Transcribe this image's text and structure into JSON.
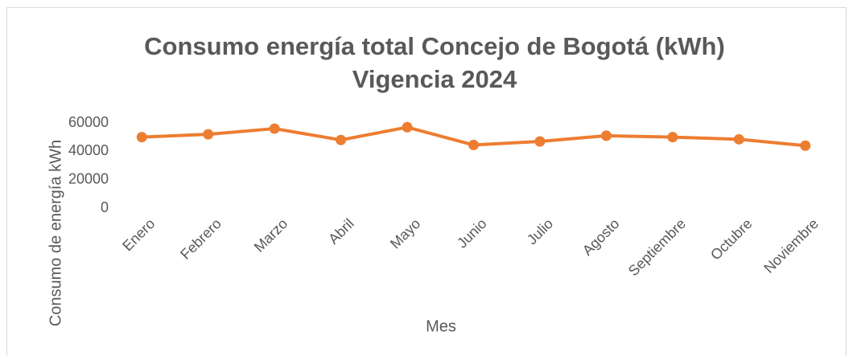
{
  "chart_data": {
    "type": "line",
    "title": "Consumo energía total Concejo de Bogotá (kWh)",
    "subtitle": "Vigencia 2024",
    "x_label": "Mes",
    "y_label": "Consumo de energía kWh",
    "categories": [
      "Enero",
      "Febrero",
      "Marzo",
      "Abril",
      "Mayo",
      "Junio",
      "Julio",
      "Agosto",
      "Septiembre",
      "Octubre",
      "Noviembre"
    ],
    "values": [
      50000,
      52000,
      56000,
      48000,
      57000,
      44500,
      47000,
      51000,
      50000,
      48500,
      44000
    ],
    "color": "#ed7d31",
    "ylim": [
      0,
      60000
    ],
    "yticks": [
      0,
      20000,
      40000,
      60000
    ],
    "grid": false
  }
}
